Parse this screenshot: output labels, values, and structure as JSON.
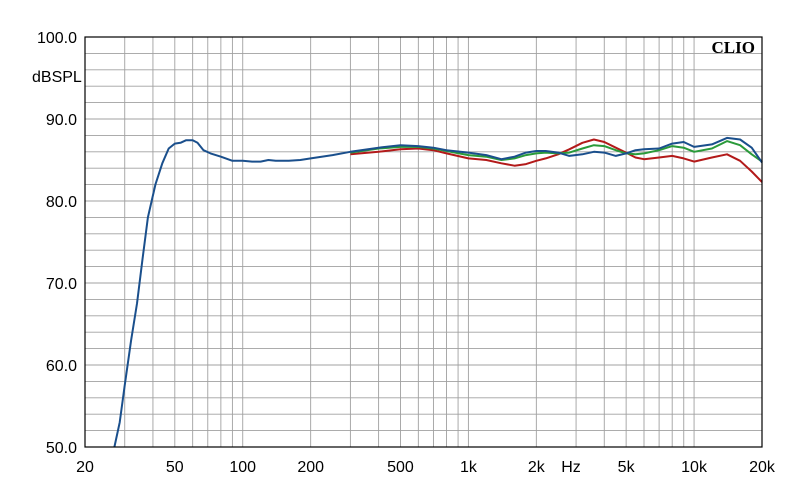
{
  "chart_data": {
    "type": "line",
    "xscale": "log",
    "xlim": [
      20,
      20000
    ],
    "ylim": [
      50,
      100
    ],
    "ylabel": "dBSPL",
    "xlabel": "Hz",
    "brand": "CLIO",
    "grid": true,
    "xticks": [
      {
        "value": 20,
        "label": "20"
      },
      {
        "value": 50,
        "label": "50"
      },
      {
        "value": 100,
        "label": "100"
      },
      {
        "value": 200,
        "label": "200"
      },
      {
        "value": 500,
        "label": "500"
      },
      {
        "value": 1000,
        "label": "1k"
      },
      {
        "value": 2000,
        "label": "2k"
      },
      {
        "value": 5000,
        "label": "5k"
      },
      {
        "value": 10000,
        "label": "10k"
      },
      {
        "value": 20000,
        "label": "20k"
      }
    ],
    "yticks": [
      {
        "value": 50,
        "label": "50.0"
      },
      {
        "value": 60,
        "label": "60.0"
      },
      {
        "value": 70,
        "label": "70.0"
      },
      {
        "value": 80,
        "label": "80.0"
      },
      {
        "value": 90,
        "label": "90.0"
      },
      {
        "value": 100,
        "label": "100.0"
      }
    ],
    "series": [
      {
        "color": "#b31a1a",
        "points": [
          [
            300,
            85.7
          ],
          [
            400,
            86.0
          ],
          [
            500,
            86.3
          ],
          [
            600,
            86.4
          ],
          [
            700,
            86.2
          ],
          [
            800,
            85.8
          ],
          [
            1000,
            85.2
          ],
          [
            1200,
            85.0
          ],
          [
            1400,
            84.6
          ],
          [
            1600,
            84.3
          ],
          [
            1800,
            84.5
          ],
          [
            2000,
            84.9
          ],
          [
            2200,
            85.2
          ],
          [
            2500,
            85.7
          ],
          [
            2800,
            86.3
          ],
          [
            3200,
            87.1
          ],
          [
            3600,
            87.5
          ],
          [
            4000,
            87.2
          ],
          [
            4500,
            86.5
          ],
          [
            5000,
            85.9
          ],
          [
            5500,
            85.3
          ],
          [
            6000,
            85.1
          ],
          [
            7000,
            85.3
          ],
          [
            8000,
            85.5
          ],
          [
            9000,
            85.2
          ],
          [
            10000,
            84.8
          ],
          [
            12000,
            85.3
          ],
          [
            14000,
            85.7
          ],
          [
            16000,
            84.9
          ],
          [
            18000,
            83.6
          ],
          [
            20000,
            82.3
          ]
        ]
      },
      {
        "color": "#2a9a3a",
        "points": [
          [
            300,
            85.9
          ],
          [
            400,
            86.4
          ],
          [
            500,
            86.6
          ],
          [
            600,
            86.6
          ],
          [
            700,
            86.4
          ],
          [
            800,
            86.1
          ],
          [
            1000,
            85.6
          ],
          [
            1200,
            85.4
          ],
          [
            1400,
            85.0
          ],
          [
            1600,
            85.2
          ],
          [
            1800,
            85.6
          ],
          [
            2000,
            85.8
          ],
          [
            2200,
            85.9
          ],
          [
            2500,
            85.8
          ],
          [
            2800,
            85.9
          ],
          [
            3200,
            86.4
          ],
          [
            3600,
            86.8
          ],
          [
            4000,
            86.7
          ],
          [
            4500,
            86.2
          ],
          [
            5000,
            85.8
          ],
          [
            5500,
            85.7
          ],
          [
            6000,
            85.8
          ],
          [
            7000,
            86.2
          ],
          [
            8000,
            86.7
          ],
          [
            9000,
            86.5
          ],
          [
            10000,
            86.0
          ],
          [
            12000,
            86.4
          ],
          [
            14000,
            87.3
          ],
          [
            16000,
            86.8
          ],
          [
            18000,
            85.7
          ],
          [
            20000,
            84.8
          ]
        ]
      },
      {
        "color": "#1a4f8c",
        "points": [
          [
            27,
            50.0
          ],
          [
            28.5,
            53.0
          ],
          [
            30,
            57.5
          ],
          [
            32,
            63.0
          ],
          [
            34,
            67.5
          ],
          [
            36,
            73.0
          ],
          [
            38,
            78.0
          ],
          [
            41,
            82.0
          ],
          [
            44,
            84.6
          ],
          [
            47,
            86.4
          ],
          [
            50,
            87.0
          ],
          [
            53,
            87.1
          ],
          [
            56,
            87.4
          ],
          [
            60,
            87.4
          ],
          [
            63,
            87.1
          ],
          [
            67,
            86.2
          ],
          [
            72,
            85.8
          ],
          [
            80,
            85.4
          ],
          [
            90,
            84.9
          ],
          [
            100,
            84.9
          ],
          [
            110,
            84.8
          ],
          [
            120,
            84.8
          ],
          [
            130,
            85.0
          ],
          [
            140,
            84.9
          ],
          [
            160,
            84.9
          ],
          [
            180,
            85.0
          ],
          [
            200,
            85.2
          ],
          [
            250,
            85.6
          ],
          [
            300,
            86.0
          ],
          [
            400,
            86.5
          ],
          [
            500,
            86.8
          ],
          [
            600,
            86.7
          ],
          [
            700,
            86.5
          ],
          [
            800,
            86.2
          ],
          [
            1000,
            85.9
          ],
          [
            1200,
            85.6
          ],
          [
            1400,
            85.1
          ],
          [
            1600,
            85.4
          ],
          [
            1800,
            85.9
          ],
          [
            2000,
            86.1
          ],
          [
            2200,
            86.1
          ],
          [
            2500,
            85.9
          ],
          [
            2800,
            85.5
          ],
          [
            3200,
            85.7
          ],
          [
            3600,
            86.0
          ],
          [
            4000,
            85.9
          ],
          [
            4500,
            85.5
          ],
          [
            5000,
            85.8
          ],
          [
            5500,
            86.2
          ],
          [
            6000,
            86.3
          ],
          [
            7000,
            86.4
          ],
          [
            8000,
            87.0
          ],
          [
            9000,
            87.2
          ],
          [
            10000,
            86.6
          ],
          [
            12000,
            86.9
          ],
          [
            14000,
            87.7
          ],
          [
            16000,
            87.5
          ],
          [
            18000,
            86.5
          ],
          [
            20000,
            84.7
          ]
        ]
      }
    ]
  }
}
